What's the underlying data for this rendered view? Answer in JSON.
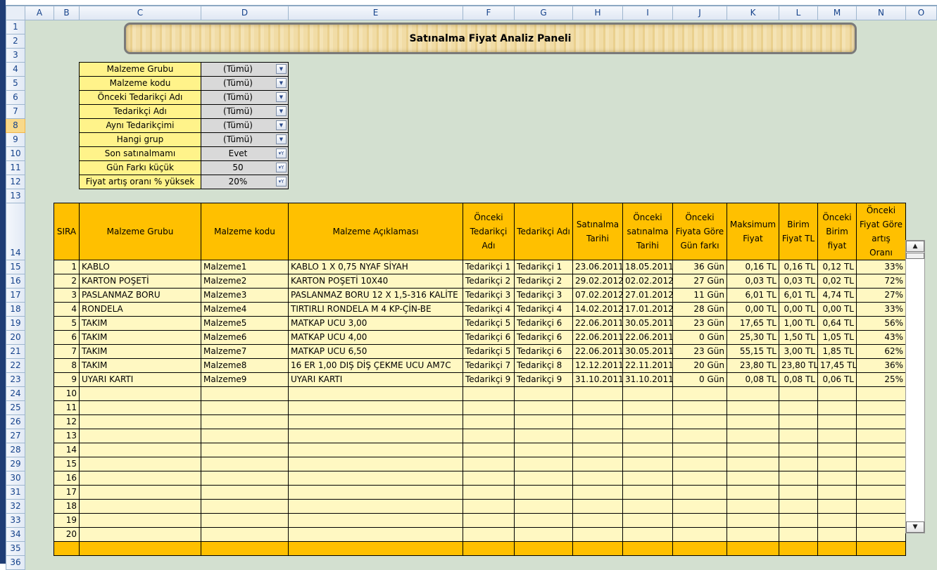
{
  "columns": [
    "A",
    "B",
    "C",
    "D",
    "E",
    "F",
    "G",
    "H",
    "I",
    "J",
    "K",
    "L",
    "M",
    "N",
    "O"
  ],
  "active_row": 8,
  "title": "Satınalma Fiyat Analiz Paneli",
  "filters": [
    {
      "label": "Malzeme Grubu",
      "value": "(Tümü)",
      "icon": "dropdown-arrow-icon"
    },
    {
      "label": "Malzeme kodu",
      "value": "(Tümü)",
      "icon": "dropdown-arrow-icon"
    },
    {
      "label": "Önceki Tedarikçi Adı",
      "value": "(Tümü)",
      "icon": "dropdown-arrow-icon"
    },
    {
      "label": "Tedarikçi Adı",
      "value": "(Tümü)",
      "icon": "dropdown-arrow-icon"
    },
    {
      "label": "Aynı Tedarikçimi",
      "value": "(Tümü)",
      "icon": "dropdown-arrow-icon"
    },
    {
      "label": "Hangi grup",
      "value": "(Tümü)",
      "icon": "dropdown-arrow-icon"
    },
    {
      "label": "Son satınalmamı",
      "value": "Evet",
      "icon": "filter-funnel-icon"
    },
    {
      "label": "Gün Farkı küçük",
      "value": "50",
      "icon": "filter-funnel-icon"
    },
    {
      "label": "Fiyat artış oranı % yüksek",
      "value": "20%",
      "icon": "filter-funnel-icon"
    }
  ],
  "table": {
    "headers": [
      "SIRA",
      "Malzeme Grubu",
      "Malzeme kodu",
      "Malzeme Açıklaması",
      "Önceki Tedarikçi Adı",
      "Tedarikçi Adı",
      "Satınalma Tarihi",
      "Önceki satınalma Tarihi",
      "Önceki Fiyata Göre Gün farkı",
      "Maksimum Fiyat",
      "Birim Fiyat TL",
      "Önceki Birim fiyat",
      "Önceki Fiyat Göre artış Oranı"
    ],
    "rows": [
      [
        "1",
        "KABLO",
        "Malzeme1",
        "KABLO 1 X 0,75 NYAF SİYAH",
        "Tedarikçi 1",
        "Tedarikçi 1",
        "23.06.2011",
        "18.05.2011",
        "36 Gün",
        "0,16 TL",
        "0,16 TL",
        "0,12 TL",
        "33%"
      ],
      [
        "2",
        "KARTON POŞETİ",
        "Malzeme2",
        "KARTON POŞETİ 10X40",
        "Tedarikçi 2",
        "Tedarikçi 2",
        "29.02.2012",
        "02.02.2012",
        "27 Gün",
        "0,03 TL",
        "0,03 TL",
        "0,02 TL",
        "72%"
      ],
      [
        "3",
        "PASLANMAZ BORU",
        "Malzeme3",
        "PASLANMAZ BORU 12 X 1,5-316 KALİTE",
        "Tedarikçi 3",
        "Tedarikçi 3",
        "07.02.2012",
        "27.01.2012",
        "11 Gün",
        "6,01 TL",
        "6,01 TL",
        "4,74 TL",
        "27%"
      ],
      [
        "4",
        "RONDELA",
        "Malzeme4",
        "TIRTIRLI RONDELA M 4 KP-ÇİN-BE",
        "Tedarikçi 4",
        "Tedarikçi 4",
        "14.02.2012",
        "17.01.2012",
        "28 Gün",
        "0,00 TL",
        "0,00 TL",
        "0,00 TL",
        "33%"
      ],
      [
        "5",
        "TAKIM",
        "Malzeme5",
        "MATKAP UCU 3,00",
        "Tedarikçi 5",
        "Tedarikçi 6",
        "22.06.2011",
        "30.05.2011",
        "23 Gün",
        "17,65 TL",
        "1,00 TL",
        "0,64 TL",
        "56%"
      ],
      [
        "6",
        "TAKIM",
        "Malzeme6",
        "MATKAP UCU 4,00",
        "Tedarikçi 6",
        "Tedarikçi 6",
        "22.06.2011",
        "22.06.2011",
        "0 Gün",
        "25,30 TL",
        "1,50 TL",
        "1,05 TL",
        "43%"
      ],
      [
        "7",
        "TAKIM",
        "Malzeme7",
        "MATKAP UCU 6,50",
        "Tedarikçi 5",
        "Tedarikçi 6",
        "22.06.2011",
        "30.05.2011",
        "23 Gün",
        "55,15 TL",
        "3,00 TL",
        "1,85 TL",
        "62%"
      ],
      [
        "8",
        "TAKIM",
        "Malzeme8",
        "16 ER 1,00 DIŞ DİŞ ÇEKME UCU AM7C",
        "Tedarikçi 7",
        "Tedarikçi 8",
        "12.12.2011",
        "22.11.2011",
        "20 Gün",
        "23,80 TL",
        "23,80 TL",
        "17,45 TL",
        "36%"
      ],
      [
        "9",
        "UYARI KARTI",
        "Malzeme9",
        "UYARI KARTI",
        "Tedarikçi 9",
        "Tedarikçi 9",
        "31.10.2011",
        "31.10.2011",
        "0 Gün",
        "0,08 TL",
        "0,08 TL",
        "0,06 TL",
        "25%"
      ],
      [
        "10"
      ],
      [
        "11"
      ],
      [
        "12"
      ],
      [
        "13"
      ],
      [
        "14"
      ],
      [
        "15"
      ],
      [
        "16"
      ],
      [
        "17"
      ],
      [
        "18"
      ],
      [
        "19"
      ],
      [
        "20"
      ]
    ]
  },
  "colors": {
    "background": "#d3e0d0",
    "header_orange": "#ffc000",
    "row_yellow": "#fff8c2",
    "filter_label": "#fff38a",
    "filter_value": "#d9d9d9"
  },
  "scrollbar": {
    "up_icon": "scroll-up-arrow-icon",
    "down_icon": "scroll-down-arrow-icon"
  }
}
